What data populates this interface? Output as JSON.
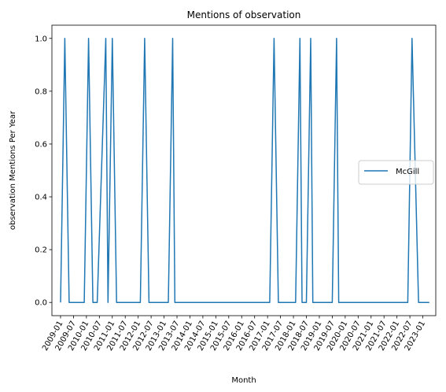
{
  "chart_data": {
    "type": "line",
    "title": "Mentions of observation",
    "xlabel": "Month",
    "ylabel": "observation Mentions Per Year",
    "xlim": [
      "2008-09",
      "2023-07"
    ],
    "ylim": [
      -0.05,
      1.05
    ],
    "xticks": [
      "2009-01",
      "2009-07",
      "2010-01",
      "2010-07",
      "2011-01",
      "2011-07",
      "2012-01",
      "2012-07",
      "2013-01",
      "2013-07",
      "2014-01",
      "2014-07",
      "2015-01",
      "2015-07",
      "2016-01",
      "2016-07",
      "2017-01",
      "2017-07",
      "2018-01",
      "2018-07",
      "2019-01",
      "2019-07",
      "2020-01",
      "2020-07",
      "2021-01",
      "2021-07",
      "2022-01",
      "2022-07",
      "2023-01"
    ],
    "yticks": [
      0.0,
      0.2,
      0.4,
      0.6,
      0.8,
      1.0
    ],
    "ytick_labels": [
      "0.0",
      "0.2",
      "0.4",
      "0.6",
      "0.8",
      "1.0"
    ],
    "grid": false,
    "legend_placement": "center-right",
    "series": [
      {
        "name": "McGill",
        "color": "#1f77b4",
        "points": [
          [
            "2009-01",
            0
          ],
          [
            "2009-03",
            1
          ],
          [
            "2009-05",
            0
          ],
          [
            "2009-12",
            0
          ],
          [
            "2010-02",
            1
          ],
          [
            "2010-04",
            0
          ],
          [
            "2010-06",
            0
          ],
          [
            "2010-10",
            1
          ],
          [
            "2010-11",
            0
          ],
          [
            "2011-01",
            1
          ],
          [
            "2011-03",
            0
          ],
          [
            "2012-02",
            0
          ],
          [
            "2012-04",
            1
          ],
          [
            "2012-06",
            0
          ],
          [
            "2013-03",
            0
          ],
          [
            "2013-05",
            1
          ],
          [
            "2013-06",
            0
          ],
          [
            "2017-02",
            0
          ],
          [
            "2017-04",
            1
          ],
          [
            "2017-06",
            0
          ],
          [
            "2018-02",
            0
          ],
          [
            "2018-04",
            1
          ],
          [
            "2018-05",
            0
          ],
          [
            "2018-07",
            0
          ],
          [
            "2018-09",
            1
          ],
          [
            "2018-10",
            0
          ],
          [
            "2019-07",
            0
          ],
          [
            "2019-09",
            1
          ],
          [
            "2019-10",
            0
          ],
          [
            "2022-06",
            0
          ],
          [
            "2022-08",
            1
          ],
          [
            "2022-11",
            0
          ],
          [
            "2023-04",
            0
          ]
        ]
      }
    ]
  }
}
